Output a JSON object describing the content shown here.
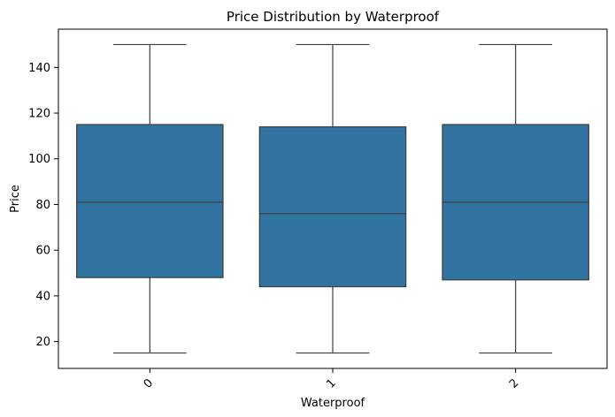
{
  "chart_data": {
    "type": "box",
    "title": "Price Distribution by Waterproof",
    "xlabel": "Waterproof",
    "ylabel": "Price",
    "categories": [
      "0",
      "1",
      "2"
    ],
    "boxes": [
      {
        "category": "0",
        "whisker_low": 15,
        "q1": 48,
        "median": 81,
        "q3": 115,
        "whisker_high": 150
      },
      {
        "category": "1",
        "whisker_low": 15,
        "q1": 44,
        "median": 76,
        "q3": 114,
        "whisker_high": 150
      },
      {
        "category": "2",
        "whisker_low": 15,
        "q1": 47,
        "median": 81,
        "q3": 115,
        "whisker_high": 150
      }
    ],
    "yticks": [
      20,
      40,
      60,
      80,
      100,
      120,
      140
    ],
    "ylim": [
      8.25,
      156.75
    ],
    "grid": false,
    "colors": {
      "box_fill": "#3274a1",
      "line": "#3d3d3d",
      "axis": "#000000"
    }
  }
}
